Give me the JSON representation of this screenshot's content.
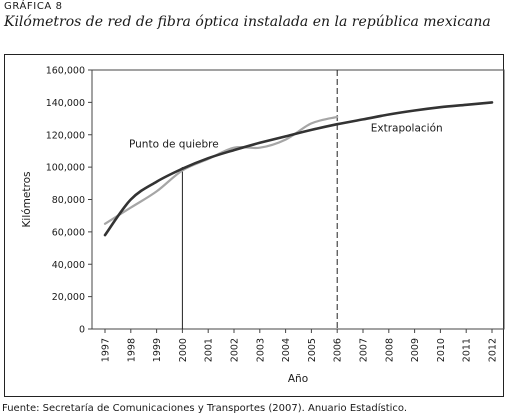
{
  "header": {
    "figure_label": "GRÁFICA 8",
    "title": "Kilómetros de red de fibra óptica instalada en la república mexicana"
  },
  "footer": {
    "source": "Fuente: Secretaría de Comunicaciones y Transportes (2007). Anuario Estadístico."
  },
  "chart_data": {
    "type": "line",
    "title": "Kilómetros de red de fibra óptica instalada en la república mexicana",
    "xlabel": "Año",
    "ylabel": "Kilómetros",
    "x_categories": [
      "1997",
      "1998",
      "1999",
      "2000",
      "2001",
      "2002",
      "2003",
      "2004",
      "2005",
      "2006",
      "2007",
      "2008",
      "2009",
      "2010",
      "2011",
      "2012"
    ],
    "ylim": [
      0,
      160000
    ],
    "y_ticks": [
      0,
      20000,
      40000,
      60000,
      80000,
      100000,
      120000,
      140000,
      160000
    ],
    "y_tick_labels": [
      "0",
      "20,000",
      "40,000",
      "60,000",
      "80,000",
      "100,000",
      "120,000",
      "140,000",
      "160,000"
    ],
    "grid": false,
    "series": [
      {
        "kind": "observed",
        "color": "#a6a6a6",
        "x": [
          1997,
          1998,
          1999,
          2000,
          2001,
          2002,
          2003,
          2004,
          2005,
          2006
        ],
        "y": [
          65000,
          75000,
          85000,
          98000,
          105000,
          112000,
          112000,
          117000,
          127000,
          131000
        ]
      },
      {
        "kind": "fitted",
        "color": "#333333",
        "x": [
          1997,
          1998,
          1999,
          2000,
          2001,
          2002,
          2003,
          2004,
          2005,
          2006,
          2007,
          2008,
          2009,
          2010,
          2011,
          2012
        ],
        "y": [
          58000,
          80000,
          91000,
          99000,
          105500,
          110500,
          115000,
          119000,
          123000,
          126500,
          129500,
          132500,
          135000,
          137000,
          138500,
          140000
        ]
      }
    ],
    "annotations": [
      {
        "text": "Punto de quiebre",
        "x": 2000,
        "y": 112000,
        "marker": "solid-vertical-line",
        "line_x": 2000
      },
      {
        "text": "Extrapolación",
        "x": 2007.3,
        "y": 122000,
        "marker": "dashed-vertical-line",
        "line_x": 2006
      }
    ]
  }
}
